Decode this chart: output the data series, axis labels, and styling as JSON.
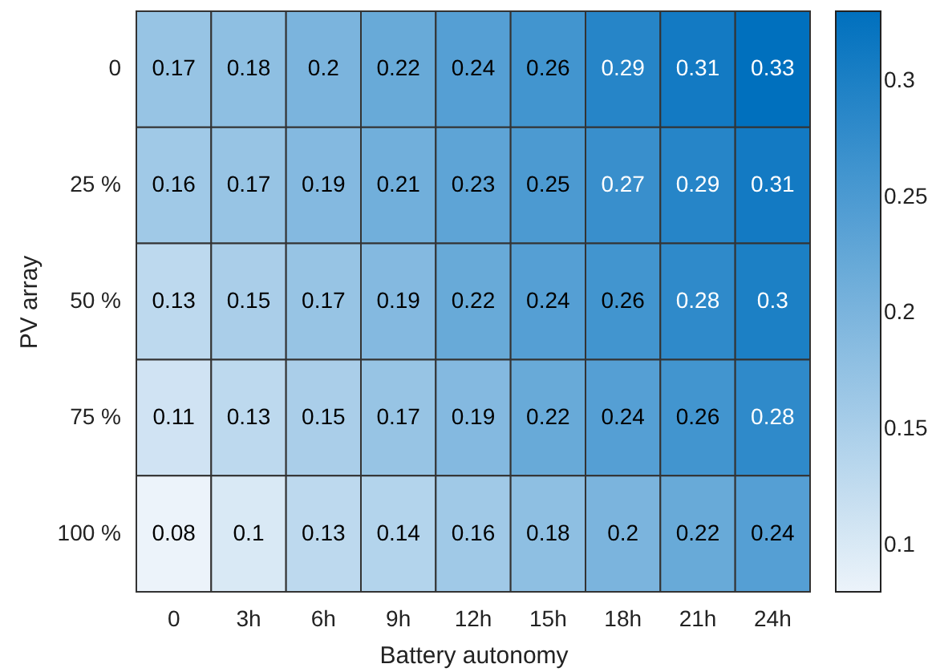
{
  "chart_data": {
    "type": "heatmap",
    "xlabel": "Battery autonomy",
    "ylabel": "PV array",
    "categories": [
      "0",
      "3h",
      "6h",
      "9h",
      "12h",
      "15h",
      "18h",
      "21h",
      "24h"
    ],
    "y_categories": [
      "0",
      "25 %",
      "50 %",
      "75 %",
      "100 %"
    ],
    "cells": [
      [
        0.17,
        0.18,
        0.2,
        0.22,
        0.24,
        0.26,
        0.29,
        0.31,
        0.33
      ],
      [
        0.16,
        0.17,
        0.19,
        0.21,
        0.23,
        0.25,
        0.27,
        0.29,
        0.31
      ],
      [
        0.13,
        0.15,
        0.17,
        0.19,
        0.22,
        0.24,
        0.26,
        0.28,
        0.3
      ],
      [
        0.11,
        0.13,
        0.15,
        0.17,
        0.19,
        0.22,
        0.24,
        0.26,
        0.28
      ],
      [
        0.08,
        0.1,
        0.13,
        0.14,
        0.16,
        0.18,
        0.2,
        0.22,
        0.24
      ]
    ],
    "data_labels": true,
    "clim": [
      0.08,
      0.33
    ],
    "cticks": [
      0.1,
      0.15,
      0.2,
      0.25,
      0.3
    ],
    "colors": [
      "#ecf3fa",
      "#0070be"
    ]
  }
}
